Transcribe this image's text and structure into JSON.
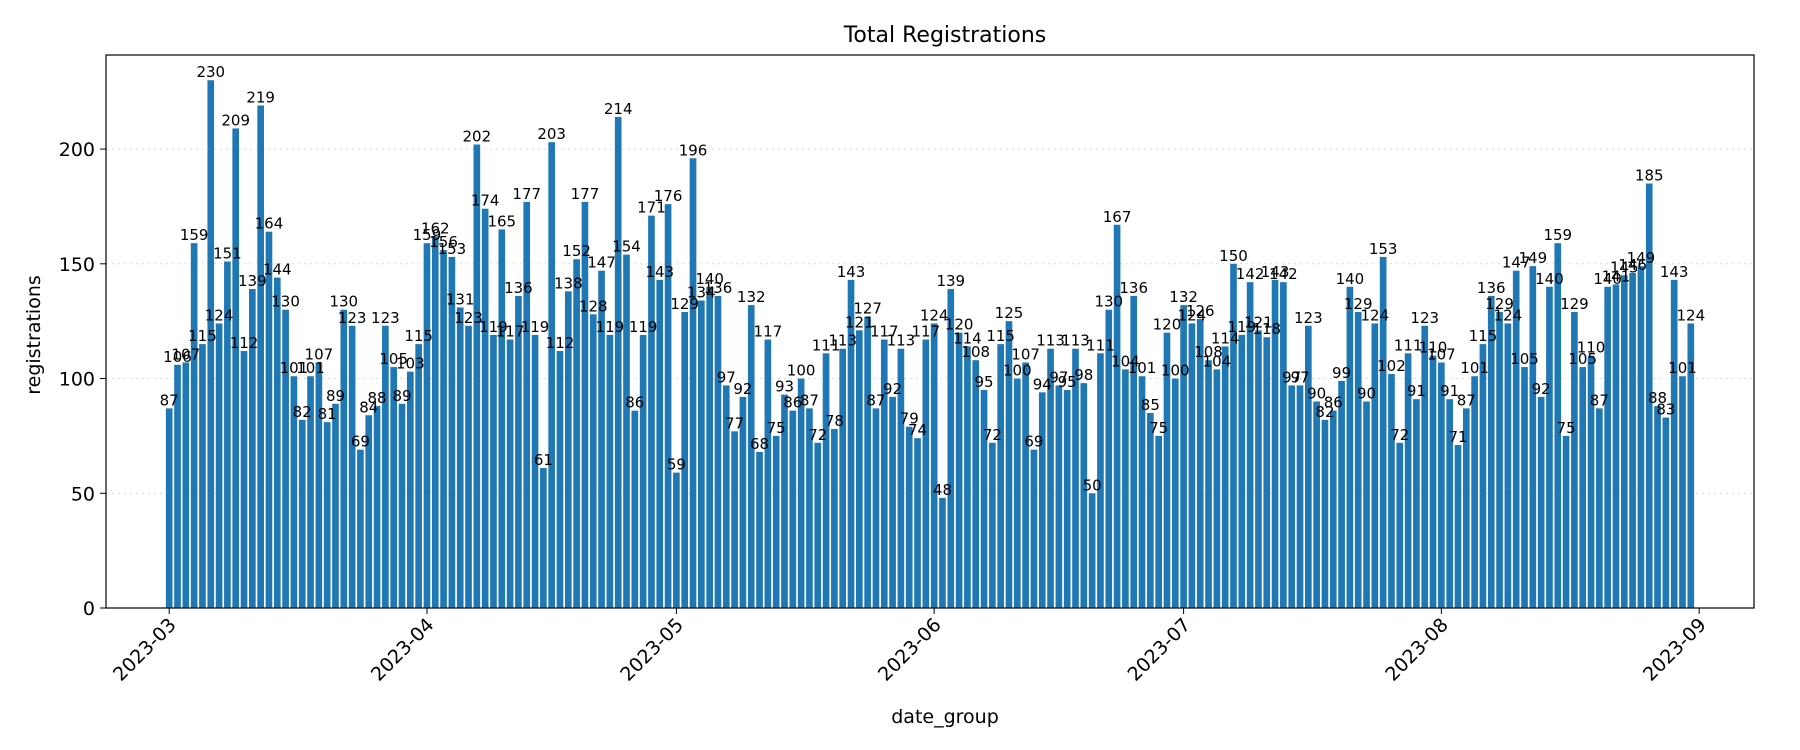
{
  "chart_data": {
    "type": "bar",
    "title": "Total Registrations",
    "xlabel": "date_group",
    "ylabel": "registrations",
    "start_date": "2023-03-01",
    "x_ticks": [
      "2023-03",
      "2023-04",
      "2023-05",
      "2023-06",
      "2023-07",
      "2023-08",
      "2023-09"
    ],
    "y_ticks": [
      0,
      50,
      100,
      150,
      200
    ],
    "ylim": [
      0,
      241
    ],
    "grid": "horizontal dotted",
    "bar_color": "#1f77b4",
    "values": [
      87,
      106,
      107,
      159,
      115,
      230,
      124,
      151,
      209,
      112,
      139,
      219,
      164,
      144,
      130,
      101,
      82,
      101,
      107,
      81,
      89,
      130,
      123,
      69,
      84,
      88,
      123,
      105,
      89,
      103,
      115,
      159,
      162,
      156,
      153,
      131,
      123,
      202,
      174,
      119,
      165,
      117,
      136,
      177,
      119,
      61,
      203,
      112,
      138,
      152,
      177,
      128,
      147,
      119,
      214,
      154,
      86,
      119,
      171,
      143,
      176,
      59,
      129,
      196,
      134,
      140,
      136,
      97,
      77,
      92,
      132,
      68,
      117,
      75,
      93,
      86,
      100,
      87,
      72,
      111,
      78,
      113,
      143,
      121,
      127,
      87,
      117,
      92,
      113,
      79,
      74,
      117,
      124,
      48,
      139,
      120,
      114,
      108,
      95,
      72,
      115,
      125,
      100,
      107,
      69,
      94,
      113,
      97,
      95,
      113,
      98,
      50,
      111,
      130,
      167,
      104,
      136,
      101,
      85,
      75,
      120,
      100,
      132,
      124,
      126,
      108,
      104,
      114,
      150,
      119,
      142,
      121,
      118,
      143,
      142,
      97,
      97,
      123,
      90,
      82,
      86,
      99,
      140,
      129,
      90,
      124,
      153,
      102,
      72,
      111,
      91,
      123,
      110,
      107,
      91,
      71,
      87,
      101,
      115,
      136,
      129,
      124,
      147,
      105,
      149,
      92,
      140,
      159,
      75,
      129,
      105,
      110,
      87,
      140,
      141,
      145,
      146,
      149,
      185,
      88,
      83,
      143,
      101,
      124
    ]
  }
}
